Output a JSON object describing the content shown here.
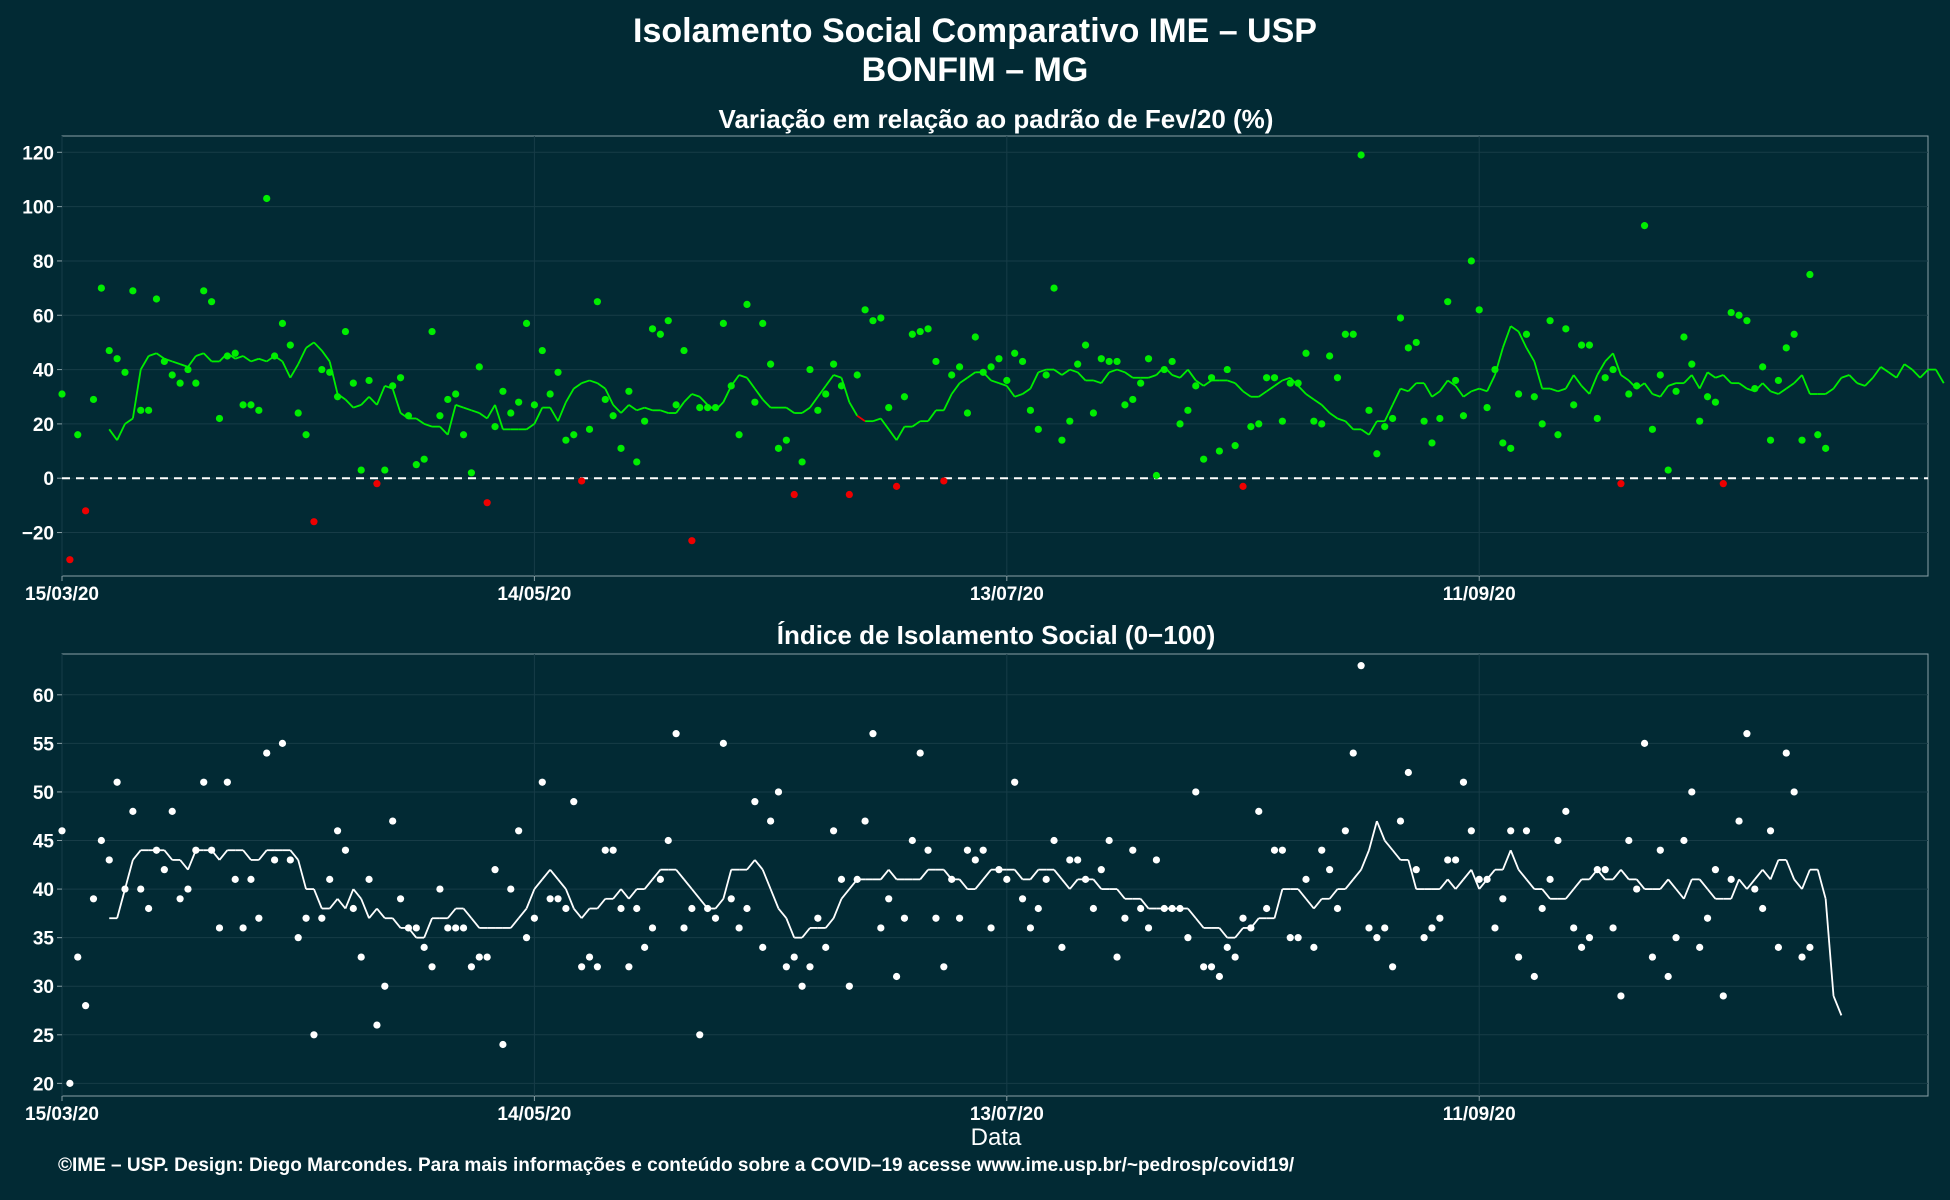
{
  "title": "Isolamento Social Comparativo IME – USP",
  "subtitle": "BONFIM – MG",
  "footer": "©IME – USP. Design: Diego Marcondes. Para mais informações e conteúdo sobre a COVID–19 acesse www.ime.usp.br/~pedrosp/covid19/",
  "colors": {
    "background": "#022a34",
    "positive": "#00ee00",
    "negative": "#ee0000",
    "index": "#ffffff",
    "grid": "#173c47"
  },
  "chart_data": [
    {
      "type": "scatter",
      "title": "Variação em relação ao padrão de Fev/20 (%)",
      "xlabel": "",
      "ylabel": "",
      "x_ticks": [
        "15/03/20",
        "14/05/20",
        "13/07/20",
        "11/09/20"
      ],
      "y_ticks": [
        -20,
        0,
        20,
        40,
        60,
        80,
        100,
        120
      ],
      "ylim": [
        -36,
        126
      ],
      "x_range": [
        "15/03/20",
        "07/11/20"
      ],
      "reference_line": 0,
      "series": [
        {
          "values": [
            31,
            -30,
            16,
            -12,
            29,
            70,
            47,
            44,
            39,
            69,
            25,
            25,
            66,
            43,
            38,
            35,
            40,
            35,
            69,
            65,
            22,
            45,
            46,
            27,
            27,
            25,
            103,
            45,
            57,
            49,
            24,
            16,
            -16,
            40,
            39,
            30,
            54,
            35,
            3,
            36,
            -2,
            3,
            34,
            37,
            23,
            5,
            7,
            54,
            23,
            29,
            31,
            16,
            2,
            41,
            -9,
            19,
            32,
            24,
            28,
            57,
            27,
            47,
            31,
            39,
            14,
            16,
            -1,
            18,
            65,
            29,
            23,
            11,
            32,
            6,
            21,
            55,
            53,
            58,
            27,
            47,
            -23,
            26,
            26,
            26,
            57,
            34,
            16,
            64,
            28,
            57,
            42,
            11,
            14,
            -6,
            6,
            40,
            25,
            31,
            42,
            34,
            -6,
            38,
            62,
            58,
            59,
            26,
            -3,
            30,
            53,
            54,
            55,
            43,
            -1,
            38,
            41,
            24,
            52,
            39,
            41,
            44,
            36,
            46,
            43,
            25,
            18,
            38,
            70,
            14,
            21,
            42,
            49,
            24,
            44,
            43,
            43,
            27,
            29,
            35,
            44,
            1,
            40,
            43,
            20,
            25,
            34,
            7,
            37,
            10,
            40,
            12,
            -3,
            19,
            20,
            37,
            37,
            21,
            35,
            35,
            46,
            21,
            20,
            45,
            37,
            53,
            53,
            119,
            25,
            9,
            19,
            22,
            59,
            48,
            50,
            21,
            13,
            22,
            65,
            36,
            23,
            80,
            62,
            26,
            40,
            13,
            11,
            31,
            53,
            30,
            20,
            58,
            16,
            55,
            27,
            49,
            49,
            22,
            37,
            40,
            -2,
            31,
            34,
            93,
            18,
            38,
            3,
            32,
            52,
            42,
            21,
            30,
            28,
            -2,
            61,
            60,
            58,
            33,
            41,
            14,
            36,
            48,
            53,
            14,
            75,
            16,
            11
          ]
        },
        {
          "name": "media_movel",
          "values": [
            null,
            null,
            null,
            null,
            null,
            null,
            18,
            14,
            20,
            22,
            40,
            45,
            46,
            44,
            43,
            42,
            41,
            45,
            46,
            43,
            43,
            46,
            44,
            45,
            43,
            44,
            43,
            45,
            43,
            37,
            42,
            48,
            50,
            47,
            43,
            31,
            29,
            26,
            27,
            30,
            27,
            34,
            33,
            24,
            22,
            22,
            20,
            19,
            19,
            16,
            27,
            26,
            25,
            24,
            22,
            27,
            18,
            18,
            18,
            18,
            20,
            26,
            26,
            21,
            28,
            33,
            35,
            36,
            35,
            33,
            27,
            24,
            27,
            25,
            26,
            25,
            25,
            24,
            24,
            28,
            31,
            30,
            27,
            25,
            28,
            34,
            38,
            37,
            33,
            29,
            26,
            26,
            26,
            24,
            24,
            26,
            30,
            34,
            38,
            37,
            28,
            23,
            21,
            21,
            22,
            18,
            14,
            19,
            19,
            21,
            21,
            25,
            25,
            31,
            35,
            37,
            39,
            39,
            36,
            35,
            34,
            30,
            31,
            33,
            39,
            40,
            40,
            38,
            40,
            39,
            36,
            36,
            35,
            39,
            40,
            39,
            37,
            37,
            37,
            38,
            41,
            38,
            37,
            40,
            36,
            34,
            36,
            36,
            36,
            35,
            32,
            30,
            30,
            32,
            34,
            36,
            37,
            34,
            31,
            29,
            27,
            24,
            22,
            21,
            18,
            18,
            16,
            21,
            21,
            27,
            33,
            32,
            35,
            35,
            30,
            32,
            36,
            34,
            30,
            32,
            33,
            32,
            38,
            48,
            56,
            54,
            48,
            43,
            33,
            33,
            32,
            33,
            38,
            34,
            31,
            38,
            43,
            46,
            38,
            36,
            33,
            35,
            31,
            30,
            34,
            35,
            35,
            38,
            33,
            39,
            37,
            38,
            35,
            35,
            33,
            32,
            35,
            32,
            31,
            33,
            35,
            38,
            31,
            31,
            31,
            33,
            37,
            38,
            35,
            34,
            37,
            41,
            39,
            37,
            42,
            40,
            37,
            40,
            40,
            35
          ]
        }
      ]
    },
    {
      "type": "scatter",
      "title": "Índice de Isolamento Social (0−100)",
      "xlabel": "Data",
      "ylabel": "",
      "x_ticks": [
        "15/03/20",
        "14/05/20",
        "13/07/20",
        "11/09/20"
      ],
      "y_ticks": [
        20,
        25,
        30,
        35,
        40,
        45,
        50,
        55,
        60
      ],
      "ylim": [
        18.7,
        64.2
      ],
      "x_range": [
        "15/03/20",
        "07/11/20"
      ],
      "series": [
        {
          "values": [
            46,
            20,
            33,
            28,
            39,
            45,
            43,
            51,
            40,
            48,
            40,
            38,
            44,
            42,
            48,
            39,
            40,
            44,
            51,
            44,
            36,
            51,
            41,
            36,
            41,
            37,
            54,
            43,
            55,
            43,
            35,
            37,
            25,
            37,
            41,
            46,
            44,
            38,
            33,
            41,
            26,
            30,
            47,
            39,
            36,
            36,
            34,
            32,
            40,
            36,
            36,
            36,
            32,
            33,
            33,
            42,
            24,
            40,
            46,
            35,
            37,
            51,
            39,
            39,
            38,
            49,
            32,
            33,
            32,
            44,
            44,
            38,
            32,
            38,
            34,
            36,
            41,
            45,
            56,
            36,
            38,
            25,
            38,
            37,
            55,
            39,
            36,
            38,
            49,
            34,
            47,
            50,
            32,
            33,
            30,
            32,
            37,
            34,
            46,
            41,
            30,
            41,
            47,
            56,
            36,
            39,
            31,
            37,
            45,
            54,
            44,
            37,
            32,
            41,
            37,
            44,
            43,
            44,
            36,
            42,
            41,
            51,
            39,
            36,
            38,
            41,
            45,
            34,
            43,
            43,
            41,
            38,
            42,
            45,
            33,
            37,
            44,
            38,
            36,
            43,
            38,
            38,
            38,
            35,
            50,
            32,
            32,
            31,
            34,
            33,
            37,
            36,
            48,
            38,
            44,
            44,
            35,
            35,
            41,
            34,
            44,
            42,
            38,
            46,
            54,
            63,
            36,
            35,
            36,
            32,
            47,
            52,
            42,
            35,
            36,
            37,
            43,
            43,
            51,
            46,
            41,
            41,
            36,
            39,
            46,
            33,
            46,
            31,
            38,
            41,
            45,
            48,
            36,
            34,
            35,
            42,
            42,
            36,
            29,
            45,
            40,
            55,
            33,
            44,
            31,
            35,
            45,
            50,
            34,
            37,
            42,
            29,
            41,
            47,
            56,
            40,
            38,
            46,
            34,
            54,
            50,
            33,
            34
          ]
        },
        {
          "name": "media_movel",
          "values": [
            null,
            null,
            null,
            null,
            null,
            null,
            37,
            37,
            40,
            43,
            44,
            44,
            44,
            44,
            43,
            43,
            42,
            44,
            44,
            44,
            43,
            44,
            44,
            44,
            43,
            43,
            44,
            44,
            44,
            44,
            43,
            40,
            40,
            38,
            38,
            39,
            38,
            40,
            39,
            37,
            38,
            37,
            37,
            36,
            36,
            35,
            35,
            37,
            37,
            37,
            38,
            38,
            37,
            36,
            36,
            36,
            36,
            36,
            37,
            38,
            40,
            41,
            42,
            41,
            40,
            38,
            37,
            38,
            38,
            39,
            39,
            40,
            39,
            40,
            40,
            41,
            42,
            42,
            42,
            41,
            40,
            39,
            38,
            38,
            39,
            42,
            42,
            42,
            43,
            42,
            40,
            38,
            37,
            35,
            35,
            36,
            36,
            36,
            37,
            39,
            40,
            41,
            41,
            41,
            41,
            42,
            41,
            41,
            41,
            41,
            42,
            42,
            42,
            41,
            41,
            40,
            40,
            41,
            42,
            42,
            42,
            42,
            41,
            41,
            42,
            42,
            42,
            41,
            40,
            41,
            41,
            41,
            40,
            40,
            40,
            39,
            39,
            39,
            38,
            38,
            38,
            38,
            38,
            38,
            37,
            36,
            36,
            36,
            35,
            35,
            36,
            36,
            37,
            37,
            37,
            40,
            40,
            40,
            39,
            38,
            39,
            39,
            40,
            40,
            41,
            42,
            44,
            47,
            45,
            44,
            43,
            43,
            40,
            40,
            40,
            40,
            41,
            40,
            41,
            42,
            40,
            41,
            42,
            42,
            44,
            42,
            41,
            40,
            40,
            39,
            39,
            39,
            40,
            41,
            41,
            42,
            41,
            41,
            42,
            41,
            41,
            40,
            40,
            40,
            41,
            40,
            39,
            41,
            41,
            40,
            39,
            39,
            39,
            41,
            40,
            41,
            42,
            41,
            43,
            43,
            41,
            40,
            42,
            42,
            39,
            29,
            27
          ]
        }
      ]
    }
  ]
}
